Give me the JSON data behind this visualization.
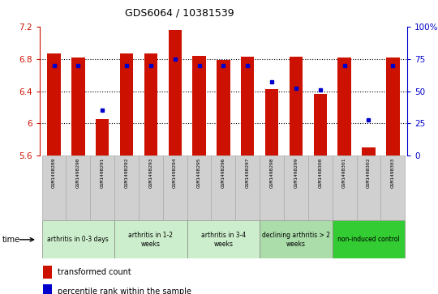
{
  "title": "GDS6064 / 10381539",
  "samples": [
    "GSM1498289",
    "GSM1498290",
    "GSM1498291",
    "GSM1498292",
    "GSM1498293",
    "GSM1498294",
    "GSM1498295",
    "GSM1498296",
    "GSM1498297",
    "GSM1498298",
    "GSM1498299",
    "GSM1498300",
    "GSM1498301",
    "GSM1498302",
    "GSM1498303"
  ],
  "red_values": [
    6.87,
    6.82,
    6.05,
    6.87,
    6.87,
    7.16,
    6.84,
    6.79,
    6.83,
    6.43,
    6.83,
    6.37,
    6.82,
    5.7,
    6.82
  ],
  "blue_percentiles": [
    70,
    70,
    35,
    70,
    70,
    75,
    70,
    70,
    70,
    57,
    52,
    51,
    70,
    28,
    70
  ],
  "ymin": 5.6,
  "ymax": 7.2,
  "yticks_left": [
    5.6,
    6.0,
    6.4,
    6.8,
    7.2
  ],
  "ytick_labels_left": [
    "5.6",
    "6",
    "6.4",
    "6.8",
    "7.2"
  ],
  "right_yticks": [
    0,
    25,
    50,
    75,
    100
  ],
  "bar_color": "#cc1100",
  "dot_color": "#0000cc",
  "bar_width": 0.55,
  "groups": [
    {
      "label": "arthritis in 0-3 days",
      "start": 0,
      "end": 3,
      "color": "#cceecc"
    },
    {
      "label": "arthritis in 1-2\nweeks",
      "start": 3,
      "end": 6,
      "color": "#cceecc"
    },
    {
      "label": "arthritis in 3-4\nweeks",
      "start": 6,
      "end": 9,
      "color": "#cceecc"
    },
    {
      "label": "declining arthritis > 2\nweeks",
      "start": 9,
      "end": 12,
      "color": "#aaddaa"
    },
    {
      "label": "non-induced control",
      "start": 12,
      "end": 15,
      "color": "#33cc33"
    }
  ],
  "bar_left_color": "#cc1100",
  "right_axis_color": "#0000cc",
  "sample_box_color": "#d0d0d0",
  "grid_lines": [
    6.0,
    6.4,
    6.8
  ]
}
